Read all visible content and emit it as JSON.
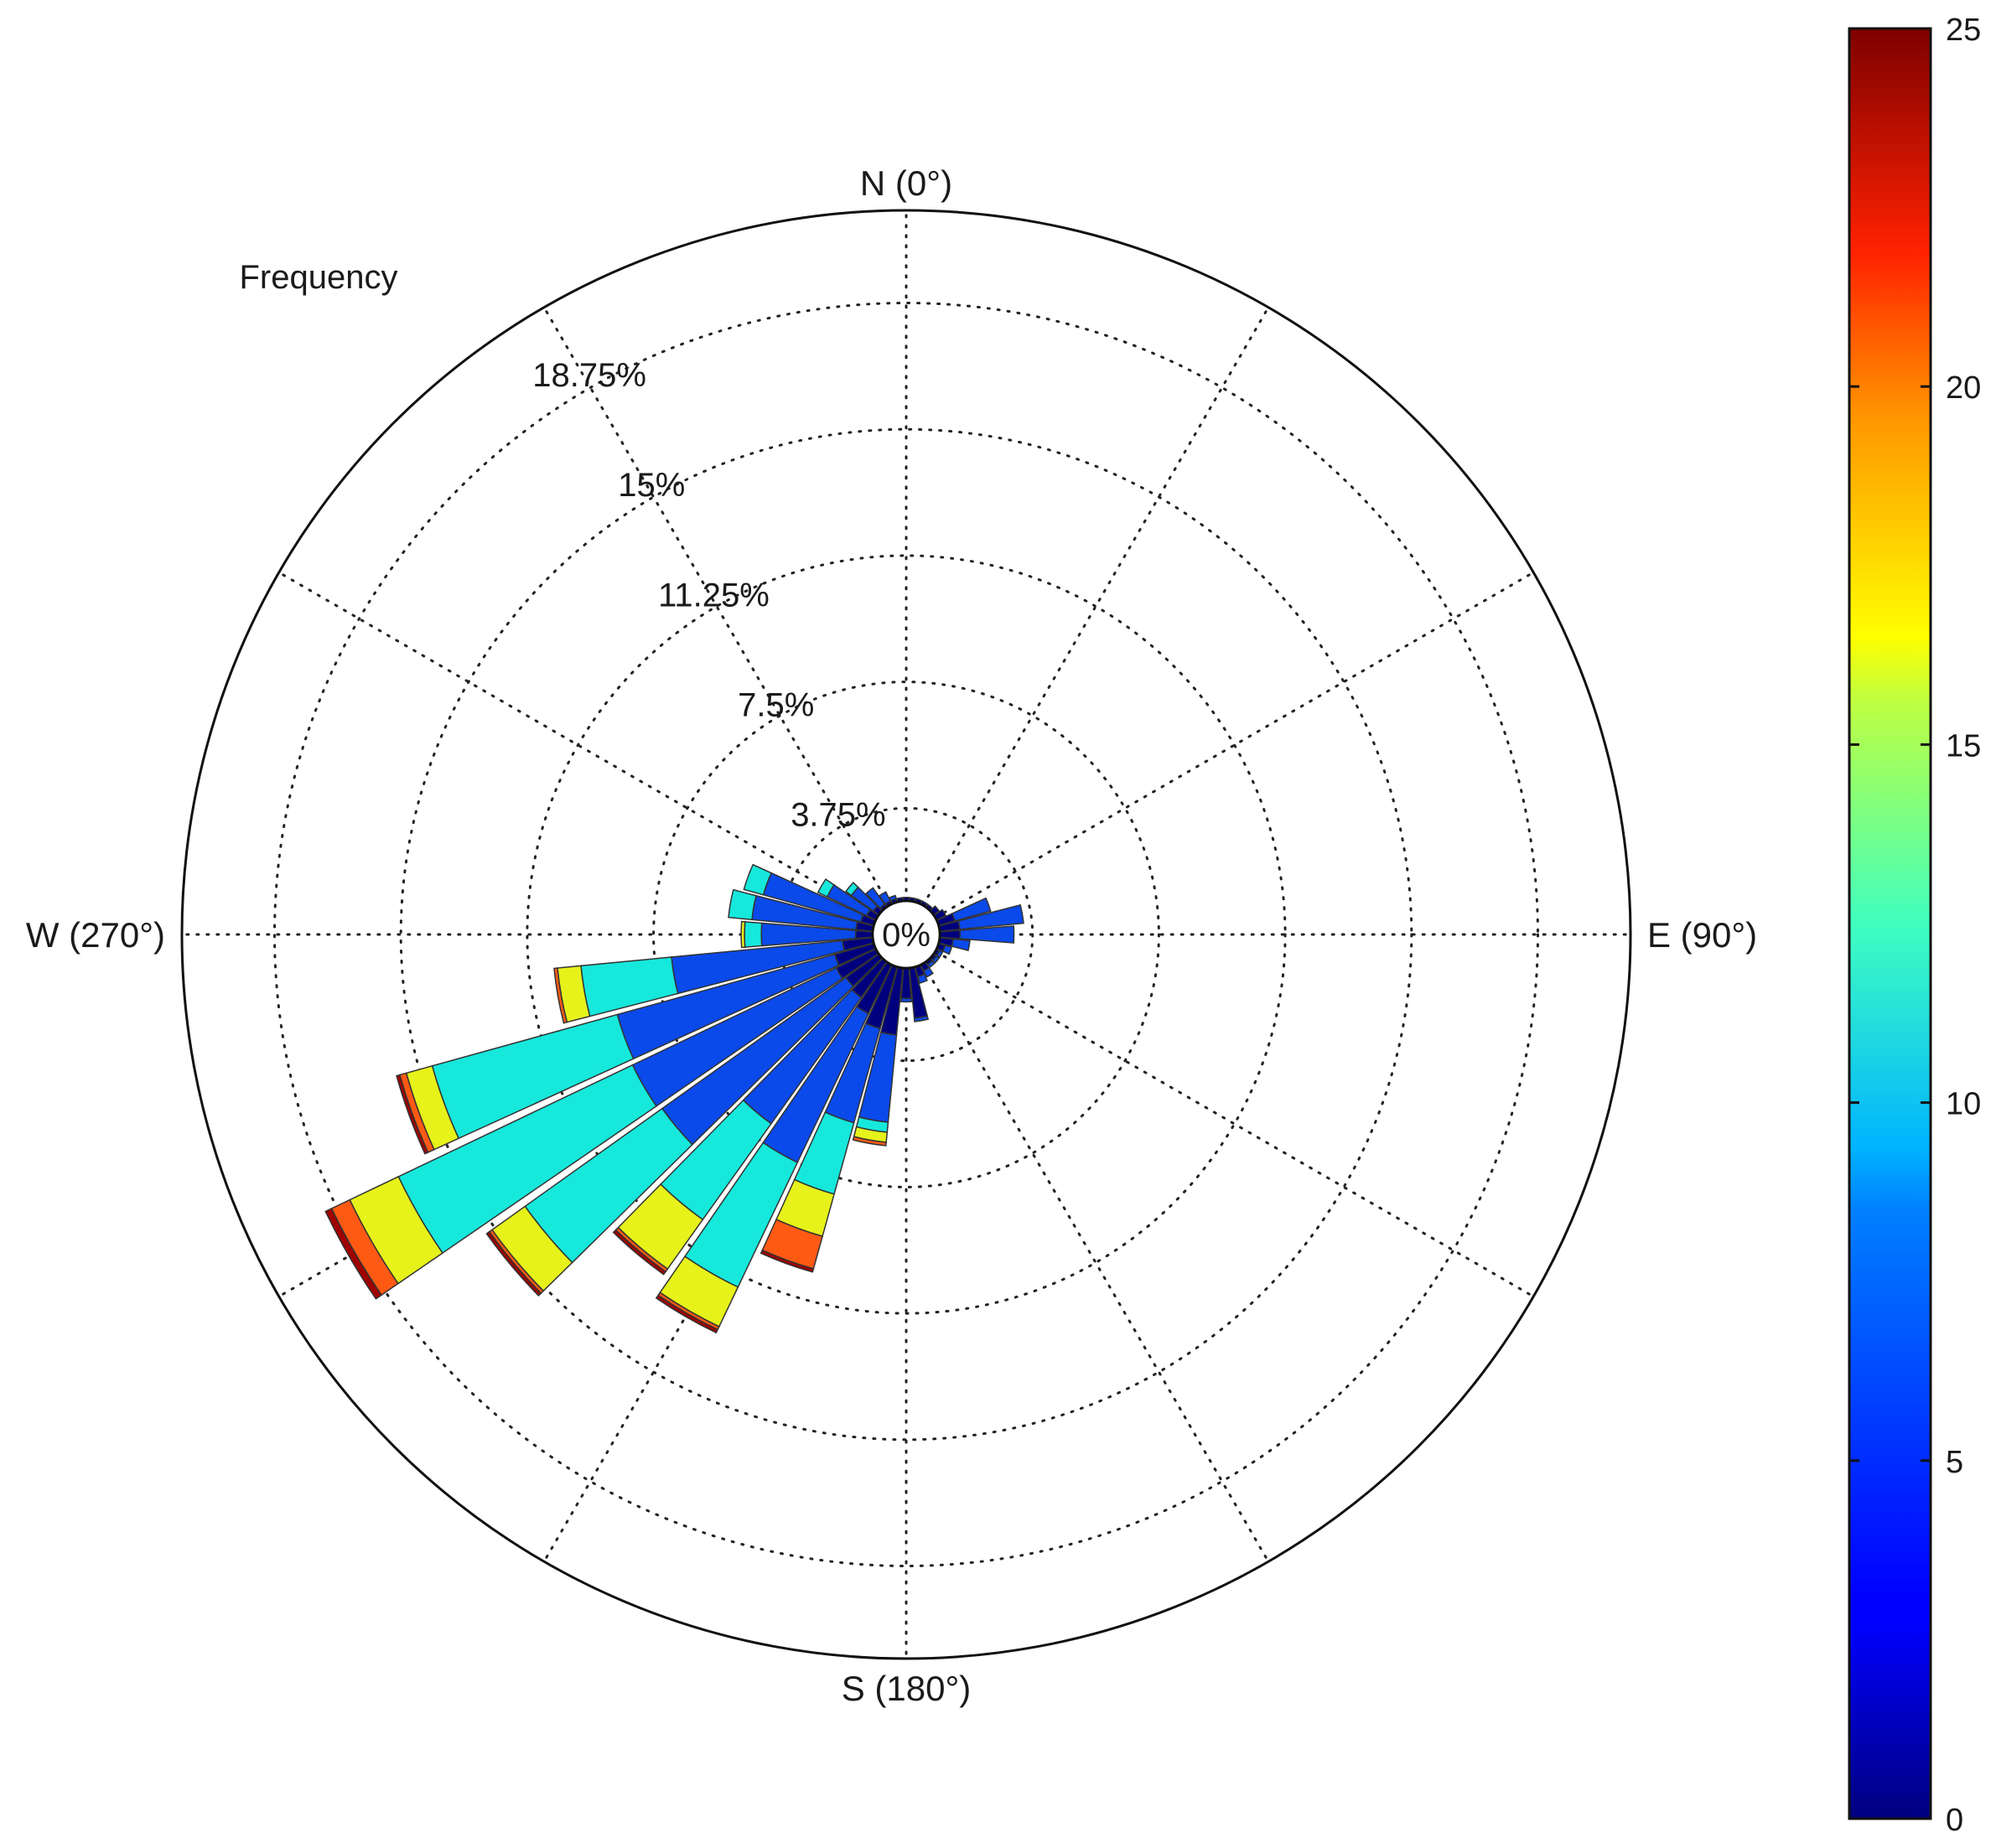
{
  "chart_data": {
    "type": "wind-rose",
    "radial_axis_title": "Frequency",
    "radial_unit": "%",
    "rmax": 21.5,
    "inner_hole_pct": 1.0,
    "ring_ticks": [
      {
        "value": 0,
        "label": "0%"
      },
      {
        "value": 3.75,
        "label": "3.75%"
      },
      {
        "value": 7.5,
        "label": "7.5%"
      },
      {
        "value": 11.25,
        "label": "11.25%"
      },
      {
        "value": 15,
        "label": "15%"
      },
      {
        "value": 18.75,
        "label": "18.75%"
      }
    ],
    "direction_labels": [
      {
        "angle": 0,
        "label": "N (0°)"
      },
      {
        "angle": 90,
        "label": "E (90°)"
      },
      {
        "angle": 180,
        "label": "S (180°)"
      },
      {
        "angle": 270,
        "label": "W (270°)"
      }
    ],
    "spoke_angles": [
      0,
      30,
      60,
      90,
      120,
      150,
      180,
      210,
      240,
      270,
      300,
      330
    ],
    "speed_bins": [
      {
        "range": [
          0,
          5
        ],
        "color": "#00007f"
      },
      {
        "range": [
          5,
          10
        ],
        "color": "#0a49ea"
      },
      {
        "range": [
          10,
          15
        ],
        "color": "#16e8dc"
      },
      {
        "range": [
          15,
          20
        ],
        "color": "#e6f21a"
      },
      {
        "range": [
          20,
          25
        ],
        "color": "#ff5a14"
      },
      {
        "range": [
          25,
          30
        ],
        "color": "#a00000"
      }
    ],
    "sectors": [
      {
        "dir": 190,
        "width": 9,
        "cum": [
          3.0,
          5.6,
          5.9,
          6.2,
          6.3,
          6.3
        ]
      },
      {
        "dir": 200,
        "width": 9,
        "cum": [
          2.9,
          5.8,
          8.0,
          9.3,
          10.3,
          10.4
        ]
      },
      {
        "dir": 210,
        "width": 9,
        "cum": [
          2.6,
          7.5,
          11.6,
          12.9,
          13.0,
          13.1
        ]
      },
      {
        "dir": 220,
        "width": 9,
        "cum": [
          2.3,
          6.9,
          10.4,
          12.2,
          12.3,
          12.4
        ]
      },
      {
        "dir": 230,
        "width": 9,
        "cum": [
          2.2,
          8.9,
          13.9,
          15.1,
          15.2,
          15.3
        ]
      },
      {
        "dir": 240,
        "width": 9,
        "cum": [
          2.3,
          9.0,
          16.7,
          18.3,
          18.9,
          19.1
        ]
      },
      {
        "dir": 250,
        "width": 9,
        "cum": [
          2.2,
          8.9,
          14.6,
          15.4,
          15.6,
          15.7
        ]
      },
      {
        "dir": 260,
        "width": 9,
        "cum": [
          1.9,
          7.0,
          9.7,
          10.4,
          10.5,
          10.5
        ]
      },
      {
        "dir": 270,
        "width": 9,
        "cum": [
          1.5,
          4.3,
          4.8,
          4.9,
          4.9,
          4.9
        ]
      },
      {
        "dir": 280,
        "width": 9,
        "cum": [
          1.5,
          4.6,
          5.3,
          5.3,
          5.3,
          5.3
        ]
      },
      {
        "dir": 290,
        "width": 9,
        "cum": [
          1.4,
          4.4,
          5.0,
          5.0,
          5.0,
          5.0
        ]
      },
      {
        "dir": 300,
        "width": 9,
        "cum": [
          1.3,
          2.6,
          2.9,
          2.9,
          2.9,
          2.9
        ]
      },
      {
        "dir": 310,
        "width": 9,
        "cum": [
          1.2,
          2.0,
          2.2,
          2.2,
          2.2,
          2.2
        ]
      },
      {
        "dir": 320,
        "width": 9,
        "cum": [
          1.1,
          1.7,
          1.7,
          1.7,
          1.7,
          1.7
        ]
      },
      {
        "dir": 330,
        "width": 9,
        "cum": [
          1.1,
          1.4,
          1.4,
          1.4,
          1.4,
          1.4
        ]
      },
      {
        "dir": 340,
        "width": 9,
        "cum": [
          1.1,
          1.2,
          1.2,
          1.2,
          1.2,
          1.2
        ]
      },
      {
        "dir": 350,
        "width": 9,
        "cum": [
          1.1,
          1.1,
          1.1,
          1.1,
          1.1,
          1.1
        ]
      },
      {
        "dir": 0,
        "width": 9,
        "cum": [
          1.1,
          1.1,
          1.1,
          1.1,
          1.1,
          1.1
        ]
      },
      {
        "dir": 10,
        "width": 9,
        "cum": [
          1.1,
          1.1,
          1.1,
          1.1,
          1.1,
          1.1
        ]
      },
      {
        "dir": 20,
        "width": 9,
        "cum": [
          1.1,
          1.1,
          1.1,
          1.1,
          1.1,
          1.1
        ]
      },
      {
        "dir": 30,
        "width": 9,
        "cum": [
          1.1,
          1.1,
          1.1,
          1.1,
          1.1,
          1.1
        ]
      },
      {
        "dir": 40,
        "width": 9,
        "cum": [
          1.1,
          1.1,
          1.1,
          1.1,
          1.1,
          1.1
        ]
      },
      {
        "dir": 50,
        "width": 9,
        "cum": [
          1.2,
          1.2,
          1.2,
          1.2,
          1.2,
          1.2
        ]
      },
      {
        "dir": 60,
        "width": 9,
        "cum": [
          1.3,
          1.3,
          1.3,
          1.3,
          1.3,
          1.3
        ]
      },
      {
        "dir": 70,
        "width": 9,
        "cum": [
          1.5,
          2.6,
          2.6,
          2.6,
          2.6,
          2.6
        ]
      },
      {
        "dir": 80,
        "width": 9,
        "cum": [
          1.6,
          3.5,
          3.5,
          3.5,
          3.5,
          3.5
        ]
      },
      {
        "dir": 90,
        "width": 9,
        "cum": [
          1.6,
          3.2,
          3.2,
          3.2,
          3.2,
          3.2
        ]
      },
      {
        "dir": 100,
        "width": 9,
        "cum": [
          1.4,
          1.9,
          1.9,
          1.9,
          1.9,
          1.9
        ]
      },
      {
        "dir": 110,
        "width": 9,
        "cum": [
          1.2,
          1.4,
          1.4,
          1.4,
          1.4,
          1.4
        ]
      },
      {
        "dir": 120,
        "width": 9,
        "cum": [
          1.1,
          1.2,
          1.2,
          1.2,
          1.2,
          1.2
        ]
      },
      {
        "dir": 130,
        "width": 9,
        "cum": [
          1.1,
          1.2,
          1.2,
          1.2,
          1.2,
          1.2
        ]
      },
      {
        "dir": 140,
        "width": 9,
        "cum": [
          1.1,
          1.2,
          1.2,
          1.2,
          1.2,
          1.2
        ]
      },
      {
        "dir": 150,
        "width": 9,
        "cum": [
          1.2,
          1.4,
          1.4,
          1.4,
          1.4,
          1.4
        ]
      },
      {
        "dir": 160,
        "width": 9,
        "cum": [
          1.3,
          1.5,
          1.5,
          1.5,
          1.5,
          1.5
        ]
      },
      {
        "dir": 170,
        "width": 9,
        "cum": [
          2.5,
          2.6,
          2.6,
          2.6,
          2.6,
          2.6
        ]
      },
      {
        "dir": 180,
        "width": 9,
        "cum": [
          1.9,
          2.0,
          2.0,
          2.0,
          2.0,
          2.0
        ]
      }
    ],
    "colorbar": {
      "min": 0,
      "max": 25,
      "ticks": [
        0,
        5,
        10,
        15,
        20,
        25
      ],
      "colormap": "jet"
    }
  }
}
